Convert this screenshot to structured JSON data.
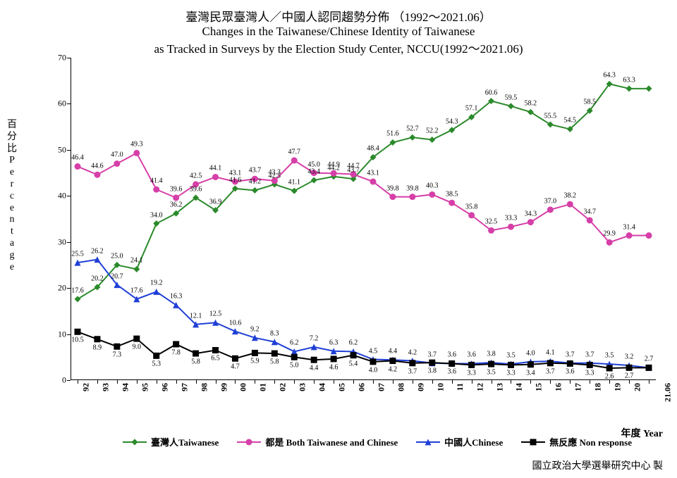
{
  "title_zh": "臺灣民眾臺灣人／中國人認同趨勢分佈 （1992～2021.06）",
  "title_en1": "Changes in the Taiwanese/Chinese Identity of Taiwanese",
  "title_en2": "as Tracked in Surveys by the Election Study Center, NCCU(1992～2021.06)",
  "title_fontsize": 17,
  "ylabel_chars": [
    "百",
    "分",
    "比",
    "P",
    "e",
    "r",
    "c",
    "e",
    "n",
    "t",
    "a",
    "g",
    "e"
  ],
  "xlabel_year": "年度 Year",
  "footer_credit": "國立政治大學選舉研究中心 製",
  "chart": {
    "type": "line",
    "ylim": [
      0,
      70
    ],
    "ytick_step": 10,
    "categories": [
      "92",
      "93",
      "94",
      "95",
      "96",
      "97",
      "98",
      "99",
      "00",
      "01",
      "02",
      "03",
      "04",
      "05",
      "06",
      "07",
      "08",
      "09",
      "10",
      "11",
      "12",
      "13",
      "14",
      "15",
      "16",
      "17",
      "18",
      "19",
      "20",
      "21.06"
    ],
    "tick_fontsize": 12,
    "label_fontsize": 10,
    "background_color": "#ffffff",
    "line_width": 2,
    "marker_size": 4.5,
    "series": [
      {
        "key": "taiwanese",
        "label": "臺灣人Taiwanese",
        "color": "#2b8a2b",
        "marker": "diamond",
        "label_pos": "above",
        "values": [
          17.6,
          20.2,
          25.0,
          24.1,
          34.0,
          36.2,
          39.6,
          36.9,
          41.6,
          41.2,
          42.5,
          41.1,
          43.4,
          44.2,
          43.7,
          48.4,
          51.6,
          52.7,
          52.2,
          54.3,
          57.1,
          60.6,
          59.5,
          58.2,
          55.5,
          54.5,
          58.5,
          64.3,
          63.3,
          null
        ],
        "last_idx": 29
      },
      {
        "key": "both",
        "label": "都是 Both Taiwanese and Chinese",
        "color": "#d63fa8",
        "marker": "circle",
        "label_pos": "above",
        "values": [
          46.4,
          44.6,
          47.0,
          49.3,
          41.4,
          39.6,
          42.5,
          44.1,
          43.1,
          43.7,
          43.3,
          47.7,
          45.0,
          44.9,
          44.7,
          43.1,
          39.8,
          39.8,
          40.3,
          38.5,
          35.8,
          32.5,
          33.3,
          34.3,
          37.0,
          38.2,
          34.7,
          29.9,
          31.4,
          null
        ],
        "last_idx": 29
      },
      {
        "key": "chinese",
        "label": "中國人Chinese",
        "color": "#1f3fd6",
        "marker": "triangle",
        "label_pos": "above",
        "values": [
          25.5,
          26.2,
          20.7,
          17.6,
          19.2,
          16.3,
          12.1,
          12.5,
          10.6,
          9.2,
          8.3,
          6.2,
          7.2,
          6.3,
          6.2,
          4.5,
          4.4,
          4.2,
          3.7,
          3.6,
          3.6,
          3.8,
          3.5,
          4.0,
          4.1,
          3.7,
          3.7,
          3.5,
          3.2,
          2.7
        ],
        "last_idx": 29
      },
      {
        "key": "nonresp",
        "label": "無反應 Non response",
        "color": "#000000",
        "marker": "square",
        "label_pos": "below",
        "values": [
          10.5,
          8.9,
          7.3,
          9.0,
          5.3,
          7.8,
          5.8,
          6.5,
          4.7,
          5.9,
          5.8,
          5.0,
          4.4,
          4.6,
          5.4,
          4.0,
          4.2,
          3.7,
          3.8,
          3.6,
          3.3,
          3.5,
          3.3,
          3.4,
          3.7,
          3.6,
          3.3,
          2.6,
          2.7,
          null
        ],
        "last_idx": 29
      }
    ]
  }
}
